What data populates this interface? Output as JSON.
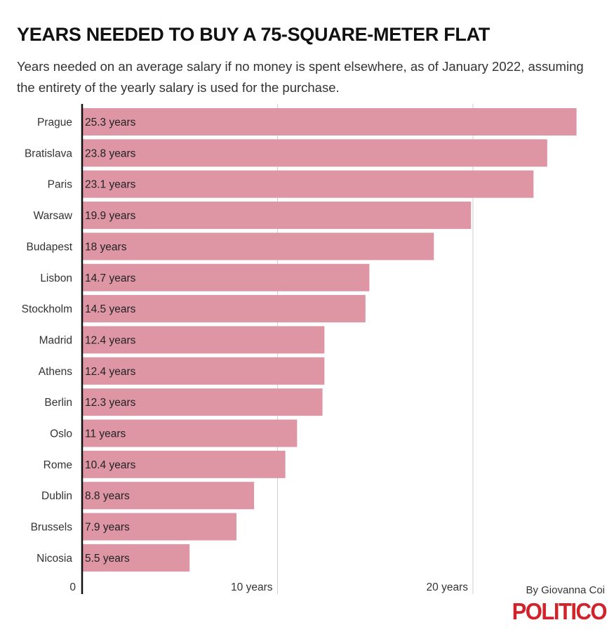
{
  "chart_data": {
    "type": "bar",
    "orientation": "horizontal",
    "title": "YEARS NEEDED TO BUY A 75-SQUARE-METER FLAT",
    "subtitle": "Years needed on an average salary if no money is spent elsewhere, as of January 2022, assuming the entirety of the yearly salary is used for the purchase.",
    "categories": [
      "Prague",
      "Bratislava",
      "Paris",
      "Warsaw",
      "Budapest",
      "Lisbon",
      "Stockholm",
      "Madrid",
      "Athens",
      "Berlin",
      "Oslo",
      "Rome",
      "Dublin",
      "Brussels",
      "Nicosia"
    ],
    "values": [
      25.3,
      23.8,
      23.1,
      19.9,
      18,
      14.7,
      14.5,
      12.4,
      12.4,
      12.3,
      11,
      10.4,
      8.8,
      7.9,
      5.5
    ],
    "data_labels": [
      "25.3 years",
      "23.8 years",
      "23.1 years",
      "19.9 years",
      "18 years",
      "14.7 years",
      "14.5 years",
      "12.4 years",
      "12.4 years",
      "12.3 years",
      "11 years",
      "10.4 years",
      "8.8 years",
      "7.9 years",
      "5.5 years"
    ],
    "xlim": [
      0,
      27
    ],
    "x_ticks": [
      0,
      10,
      20
    ],
    "x_tick_labels": [
      "0",
      "10 years",
      "20 years"
    ],
    "grid": true,
    "xlabel": "",
    "ylabel": "",
    "bar_color": "#de96a5"
  },
  "credit": {
    "byline": "By Giovanna Coi",
    "logo": "POLITICO",
    "logo_color": "#d2232a"
  }
}
